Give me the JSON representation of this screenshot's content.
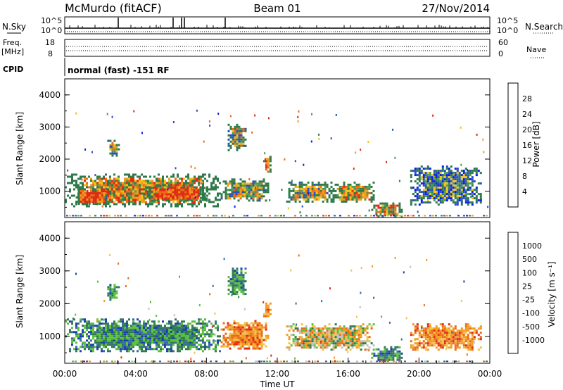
{
  "header": {
    "station": "McMurdo (fitACF)",
    "beam": "Beam 01",
    "date": "27/Nov/2014"
  },
  "top_panels": {
    "nsky_label": "N.Sky",
    "nsearch_label": "N.Search",
    "count_ticks": [
      "10^5",
      "10^0"
    ],
    "freq_label_1": "Freq.",
    "freq_label_2": "[MHz]",
    "freq_ticks": [
      "18",
      "8"
    ],
    "nave_label": "Nave",
    "nave_ticks": [
      "60",
      "0"
    ],
    "cpid_label": "CPID",
    "cpid_text": "normal (fast) -151 RF"
  },
  "chart_data": [
    {
      "type": "heatmap",
      "title": "",
      "ylabel": "Slant Range [km]",
      "xlabel": "",
      "ylim": [
        180,
        4500
      ],
      "yticks": [
        1000,
        2000,
        3000,
        4000
      ],
      "xlim_hours": [
        0,
        24
      ],
      "colorbar": {
        "label": "Power [dB]",
        "ticks": [
          4,
          8,
          12,
          16,
          20,
          24,
          28
        ],
        "colors": [
          "#0a1ee6",
          "#2a4fc0",
          "#2f7a4a",
          "#4a9c52",
          "#f0c21c",
          "#f29b1c",
          "#ec6a1a",
          "#e22a14"
        ]
      },
      "regions": [
        {
          "t0": 0.0,
          "t1": 8.8,
          "r0": 550,
          "r1": 1550,
          "level": "strong"
        },
        {
          "t0": 0.5,
          "t1": 2.5,
          "r0": 600,
          "r1": 1100,
          "level": "peak"
        },
        {
          "t0": 4.5,
          "t1": 8.0,
          "r0": 700,
          "r1": 1200,
          "level": "peak"
        },
        {
          "t0": 8.8,
          "t1": 11.5,
          "r0": 700,
          "r1": 1400,
          "level": "moderate"
        },
        {
          "t0": 11.2,
          "t1": 11.6,
          "r0": 1600,
          "r1": 2100,
          "level": "peak"
        },
        {
          "t0": 9.2,
          "t1": 10.2,
          "r0": 2300,
          "r1": 3100,
          "level": "moderate"
        },
        {
          "t0": 2.4,
          "t1": 3.0,
          "r0": 2100,
          "r1": 2600,
          "level": "moderate"
        },
        {
          "t0": 12.5,
          "t1": 15.0,
          "r0": 700,
          "r1": 1300,
          "level": "moderate"
        },
        {
          "t0": 15.0,
          "t1": 17.5,
          "r0": 650,
          "r1": 1300,
          "level": "strong"
        },
        {
          "t0": 17.3,
          "t1": 19.0,
          "r0": 250,
          "r1": 650,
          "level": "strong"
        },
        {
          "t0": 19.5,
          "t1": 23.5,
          "r0": 600,
          "r1": 1800,
          "level": "weak"
        }
      ]
    },
    {
      "type": "heatmap",
      "title": "",
      "ylabel": "Slant Range [km]",
      "xlabel": "Time UT",
      "ylim": [
        180,
        4500
      ],
      "yticks": [
        1000,
        2000,
        3000,
        4000
      ],
      "xlim_hours": [
        0,
        24
      ],
      "xticks": [
        "00:00",
        "04:00",
        "08:00",
        "12:00",
        "16:00",
        "20:00",
        "00:00"
      ],
      "colorbar": {
        "label": "Velocity [m s⁻¹]",
        "ticks": [
          "1000",
          "500",
          "100",
          "25",
          "-25",
          "-100",
          "-500",
          "-1000"
        ],
        "colors": [
          "#1a3fb0",
          "#3a6aa8",
          "#2f7a52",
          "#5ac03a",
          "#c0c0c0",
          "#f2c24a",
          "#f29b1c",
          "#ec6a1a",
          "#e02a14"
        ]
      },
      "regions": [
        {
          "t0": 0.0,
          "t1": 8.8,
          "r0": 550,
          "r1": 1550,
          "level": "positive"
        },
        {
          "t0": 5.0,
          "t1": 7.8,
          "r0": 900,
          "r1": 1300,
          "level": "positive"
        },
        {
          "t0": 8.8,
          "t1": 11.5,
          "r0": 600,
          "r1": 1500,
          "level": "negative"
        },
        {
          "t0": 11.2,
          "t1": 11.6,
          "r0": 1600,
          "r1": 2100,
          "level": "negative"
        },
        {
          "t0": 9.2,
          "t1": 10.2,
          "r0": 2300,
          "r1": 3100,
          "level": "positive"
        },
        {
          "t0": 2.4,
          "t1": 3.0,
          "r0": 2100,
          "r1": 2600,
          "level": "positive"
        },
        {
          "t0": 12.5,
          "t1": 17.5,
          "r0": 600,
          "r1": 1400,
          "level": "mixed"
        },
        {
          "t0": 17.3,
          "t1": 19.0,
          "r0": 250,
          "r1": 700,
          "level": "positive"
        },
        {
          "t0": 19.5,
          "t1": 23.5,
          "r0": 600,
          "r1": 1400,
          "level": "negative"
        }
      ]
    }
  ]
}
